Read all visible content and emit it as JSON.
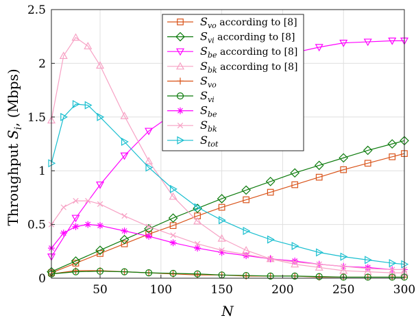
{
  "chart_data": {
    "type": "line",
    "xlabel": "N",
    "ylabel": "Throughput S_i, (Mbps)",
    "xlim": [
      10,
      300
    ],
    "ylim": [
      0,
      2.5
    ],
    "xticks": [
      50,
      100,
      150,
      200,
      250,
      300
    ],
    "xtick_labels": [
      "50",
      "100",
      "150",
      "200",
      "250",
      "300"
    ],
    "yticks": [
      0,
      0.5,
      1,
      1.5,
      2,
      2.5
    ],
    "ytick_labels": [
      "0",
      "0.5",
      "1",
      "1.5",
      "2",
      "2.5"
    ],
    "grid": true,
    "legend_position": "top-right",
    "series": [
      {
        "name": "S_vo according to [8]",
        "color": "#d95319",
        "marker": "square",
        "line": true,
        "x": [
          10,
          30,
          50,
          70,
          90,
          110,
          130,
          150,
          170,
          190,
          210,
          230,
          250,
          270,
          290,
          300
        ],
        "y": [
          0.05,
          0.14,
          0.23,
          0.32,
          0.41,
          0.49,
          0.58,
          0.66,
          0.73,
          0.8,
          0.87,
          0.94,
          1.01,
          1.07,
          1.13,
          1.16
        ]
      },
      {
        "name": "S_vi according to [8]",
        "color": "#0b7a0b",
        "marker": "diamond",
        "line": true,
        "x": [
          10,
          30,
          50,
          70,
          90,
          110,
          130,
          150,
          170,
          190,
          210,
          230,
          250,
          270,
          290,
          300
        ],
        "y": [
          0.06,
          0.16,
          0.26,
          0.36,
          0.46,
          0.56,
          0.65,
          0.74,
          0.82,
          0.9,
          0.98,
          1.05,
          1.12,
          1.19,
          1.25,
          1.28
        ]
      },
      {
        "name": "S_be according to [8]",
        "color": "#ff00ff",
        "marker": "triangle-down",
        "line": true,
        "x": [
          10,
          30,
          50,
          70,
          90,
          110,
          130,
          150,
          170,
          190,
          210,
          230,
          250,
          270,
          290,
          300
        ],
        "y": [
          0.2,
          0.56,
          0.87,
          1.14,
          1.37,
          1.53,
          1.68,
          1.82,
          1.93,
          2.02,
          2.1,
          2.15,
          2.19,
          2.2,
          2.21,
          2.21
        ]
      },
      {
        "name": "S_bk according to [8]",
        "color": "#f7a1c4",
        "marker": "triangle-up",
        "line": true,
        "x": [
          10,
          20,
          30,
          40,
          50,
          70,
          90,
          110,
          130,
          150,
          170,
          190,
          210,
          230,
          250,
          270,
          290,
          300
        ],
        "y": [
          1.47,
          2.07,
          2.24,
          2.16,
          1.98,
          1.51,
          1.09,
          0.76,
          0.53,
          0.37,
          0.26,
          0.18,
          0.13,
          0.1,
          0.07,
          0.06,
          0.05,
          0.05
        ]
      },
      {
        "name": "S_vo",
        "color": "#d95319",
        "marker": "plus",
        "line": true,
        "x": [
          10,
          30,
          50,
          70,
          90,
          110,
          130,
          150,
          170,
          190,
          210,
          230,
          250,
          270,
          290,
          300
        ],
        "y": [
          0.04,
          0.07,
          0.07,
          0.06,
          0.05,
          0.04,
          0.03,
          0.03,
          0.02,
          0.02,
          0.02,
          0.01,
          0.01,
          0.01,
          0.01,
          0.01
        ]
      },
      {
        "name": "S_vi",
        "color": "#0b7a0b",
        "marker": "circle",
        "line": true,
        "x": [
          10,
          30,
          50,
          70,
          90,
          110,
          130,
          150,
          170,
          190,
          210,
          230,
          250,
          270,
          290,
          300
        ],
        "y": [
          0.04,
          0.06,
          0.065,
          0.06,
          0.05,
          0.045,
          0.04,
          0.03,
          0.025,
          0.02,
          0.02,
          0.015,
          0.01,
          0.01,
          0.01,
          0.01
        ]
      },
      {
        "name": "S_be",
        "color": "#ff00ff",
        "marker": "asterisk",
        "line": true,
        "x": [
          10,
          20,
          30,
          40,
          50,
          70,
          90,
          110,
          130,
          150,
          170,
          190,
          210,
          230,
          250,
          270,
          290,
          300
        ],
        "y": [
          0.28,
          0.42,
          0.48,
          0.5,
          0.49,
          0.44,
          0.39,
          0.33,
          0.28,
          0.24,
          0.21,
          0.18,
          0.16,
          0.13,
          0.11,
          0.1,
          0.08,
          0.08
        ]
      },
      {
        "name": "S_bk",
        "color": "#f7a1c4",
        "marker": "cross",
        "line": true,
        "x": [
          10,
          20,
          30,
          40,
          50,
          70,
          90,
          110,
          130,
          150,
          170,
          190,
          210,
          230,
          250,
          270,
          290,
          300
        ],
        "y": [
          0.5,
          0.66,
          0.72,
          0.72,
          0.69,
          0.58,
          0.48,
          0.4,
          0.32,
          0.26,
          0.22,
          0.18,
          0.15,
          0.13,
          0.11,
          0.09,
          0.08,
          0.08
        ]
      },
      {
        "name": "S_tot",
        "color": "#17becf",
        "marker": "triangle-right",
        "line": true,
        "x": [
          10,
          20,
          30,
          40,
          50,
          70,
          90,
          110,
          130,
          150,
          170,
          190,
          210,
          230,
          250,
          270,
          290,
          300
        ],
        "y": [
          1.07,
          1.5,
          1.62,
          1.61,
          1.5,
          1.27,
          1.03,
          0.83,
          0.66,
          0.54,
          0.44,
          0.36,
          0.3,
          0.24,
          0.2,
          0.17,
          0.14,
          0.13
        ]
      }
    ]
  }
}
